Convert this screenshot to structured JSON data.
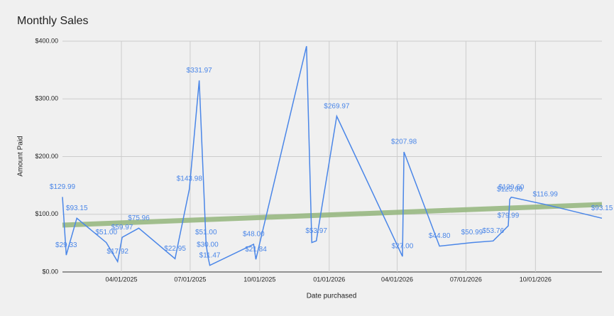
{
  "chart_data": {
    "type": "line",
    "title": "Monthly Sales",
    "x_label": "Date purchased",
    "y_label": "Amount Paid",
    "x": [
      "01/13/2025",
      "01/18/2025",
      "02/01/2025",
      "03/12/2025",
      "03/27/2025",
      "04/02/2025",
      "04/24/2025",
      "06/11/2025",
      "06/30/2025",
      "07/13/2025",
      "07/22/2025",
      "07/24/2025",
      "07/27/2025",
      "09/23/2025",
      "09/26/2025",
      "12/02/2025",
      "12/09/2025",
      "12/15/2025",
      "01/11/2026",
      "04/08/2026",
      "04/10/2026",
      "05/27/2026",
      "07/09/2026",
      "08/06/2026",
      "08/26/2026",
      "08/28/2026",
      "08/30/2026",
      "10/14/2026",
      "12/28/2026"
    ],
    "series": [
      {
        "name": "Amount Paid",
        "color": "#4a86e8",
        "values": [
          129.99,
          29.33,
          93.15,
          51,
          17.92,
          59.97,
          75.96,
          22.95,
          143.98,
          331.97,
          51,
          30,
          11.47,
          48,
          21.84,
          391.4,
          50.99,
          53.97,
          269.97,
          27,
          207.98,
          44.8,
          50.99,
          53.76,
          79.99,
          125.98,
          129.6,
          116.99,
          93.15
        ],
        "value_labels": [
          "$129.99",
          "$29.33",
          "$93.15",
          "$51.00",
          "$17.92",
          "$59.97",
          "$75.96",
          "$22.95",
          "$143.98",
          "$331.97",
          "$51.00",
          "$30.00",
          "$11.47",
          "$48.00",
          "$21.84",
          null,
          null,
          "$53.97",
          "$269.97",
          "$27.00",
          "$207.98",
          "$44.80",
          "$50.99",
          "$53.76",
          "$79.99",
          "$125.98",
          "$129.60",
          "$116.99",
          "$93.15"
        ]
      }
    ],
    "trendline": {
      "color": "#93b57b",
      "values": [
        81.2,
        117
      ]
    },
    "xlim": [
      "01/13/2025",
      "12/28/2026"
    ],
    "xticks": [
      "04/01/2025",
      "07/01/2025",
      "10/01/2025",
      "01/01/2026",
      "04/01/2026",
      "07/01/2026",
      "10/01/2026"
    ],
    "ylim": [
      0,
      400
    ],
    "yticks": [
      {
        "value": 0,
        "label": "$0.00"
      },
      {
        "value": 100,
        "label": "$100.00"
      },
      {
        "value": 200,
        "label": "$200.00"
      },
      {
        "value": 300,
        "label": "$300.00"
      },
      {
        "value": 400,
        "label": "$400.00"
      }
    ],
    "grid": true
  }
}
